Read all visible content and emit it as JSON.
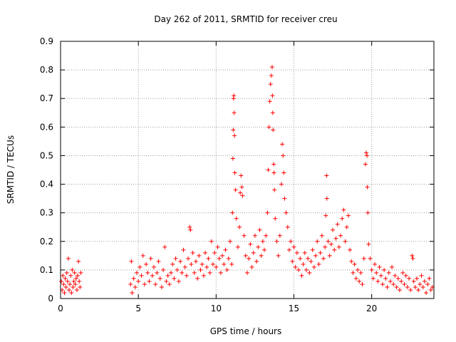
{
  "chart_data": {
    "type": "scatter",
    "title": "Day 262 of 2011, SRMTID for receiver creu",
    "xlabel": "GPS time / hours",
    "ylabel": "SRMTID / TECUs",
    "xlim": [
      0,
      24
    ],
    "ylim": [
      0,
      0.9
    ],
    "xticks": [
      0,
      5,
      10,
      15,
      20
    ],
    "xtick_labels": [
      "0",
      "5",
      "10",
      "15",
      "20"
    ],
    "yticks": [
      0,
      0.1,
      0.2,
      0.3,
      0.4,
      0.5,
      0.6,
      0.7,
      0.8,
      0.9
    ],
    "ytick_labels": [
      "0",
      "0.1",
      "0.2",
      "0.3",
      "0.4",
      "0.5",
      "0.6",
      "0.7",
      "0.8",
      "0.9"
    ],
    "grid": true,
    "marker": "+",
    "color": "#ff0000",
    "series": [
      {
        "name": "SRMTID",
        "points": [
          [
            0.05,
            0.06
          ],
          [
            0.1,
            0.03
          ],
          [
            0.15,
            0.08
          ],
          [
            0.2,
            0.05
          ],
          [
            0.25,
            0.02
          ],
          [
            0.3,
            0.07
          ],
          [
            0.35,
            0.04
          ],
          [
            0.4,
            0.09
          ],
          [
            0.45,
            0.06
          ],
          [
            0.5,
            0.14
          ],
          [
            0.55,
            0.03
          ],
          [
            0.6,
            0.05
          ],
          [
            0.65,
            0.08
          ],
          [
            0.7,
            0.02
          ],
          [
            0.75,
            0.1
          ],
          [
            0.8,
            0.04
          ],
          [
            0.85,
            0.06
          ],
          [
            0.9,
            0.09
          ],
          [
            0.95,
            0.05
          ],
          [
            1.0,
            0.07
          ],
          [
            1.05,
            0.03
          ],
          [
            1.1,
            0.08
          ],
          [
            1.15,
            0.13
          ],
          [
            1.2,
            0.06
          ],
          [
            1.25,
            0.04
          ],
          [
            1.3,
            0.09
          ],
          [
            4.5,
            0.05
          ],
          [
            4.55,
            0.13
          ],
          [
            4.6,
            0.02
          ],
          [
            4.7,
            0.07
          ],
          [
            4.8,
            0.04
          ],
          [
            4.9,
            0.09
          ],
          [
            5.0,
            0.06
          ],
          [
            5.1,
            0.11
          ],
          [
            5.2,
            0.08
          ],
          [
            5.3,
            0.15
          ],
          [
            5.4,
            0.05
          ],
          [
            5.5,
            0.12
          ],
          [
            5.6,
            0.09
          ],
          [
            5.7,
            0.06
          ],
          [
            5.8,
            0.14
          ],
          [
            5.9,
            0.08
          ],
          [
            6.0,
            0.11
          ],
          [
            6.1,
            0.05
          ],
          [
            6.2,
            0.09
          ],
          [
            6.3,
            0.13
          ],
          [
            6.4,
            0.07
          ],
          [
            6.5,
            0.04
          ],
          [
            6.6,
            0.1
          ],
          [
            6.7,
            0.18
          ],
          [
            6.8,
            0.06
          ],
          [
            6.9,
            0.08
          ],
          [
            7.0,
            0.05
          ],
          [
            7.1,
            0.09
          ],
          [
            7.2,
            0.12
          ],
          [
            7.3,
            0.07
          ],
          [
            7.4,
            0.14
          ],
          [
            7.5,
            0.1
          ],
          [
            7.6,
            0.06
          ],
          [
            7.7,
            0.13
          ],
          [
            7.8,
            0.09
          ],
          [
            7.9,
            0.17
          ],
          [
            8.0,
            0.11
          ],
          [
            8.1,
            0.08
          ],
          [
            8.2,
            0.14
          ],
          [
            8.3,
            0.25
          ],
          [
            8.35,
            0.24
          ],
          [
            8.4,
            0.12
          ],
          [
            8.5,
            0.16
          ],
          [
            8.6,
            0.09
          ],
          [
            8.7,
            0.13
          ],
          [
            8.8,
            0.07
          ],
          [
            8.9,
            0.15
          ],
          [
            9.0,
            0.1
          ],
          [
            9.1,
            0.12
          ],
          [
            9.2,
            0.08
          ],
          [
            9.3,
            0.16
          ],
          [
            9.4,
            0.11
          ],
          [
            9.5,
            0.14
          ],
          [
            9.6,
            0.09
          ],
          [
            9.7,
            0.2
          ],
          [
            9.8,
            0.12
          ],
          [
            9.9,
            0.16
          ],
          [
            10.0,
            0.11
          ],
          [
            10.1,
            0.18
          ],
          [
            10.2,
            0.14
          ],
          [
            10.3,
            0.09
          ],
          [
            10.4,
            0.15
          ],
          [
            10.5,
            0.12
          ],
          [
            10.6,
            0.17
          ],
          [
            10.7,
            0.1
          ],
          [
            10.8,
            0.14
          ],
          [
            10.9,
            0.2
          ],
          [
            11.0,
            0.12
          ],
          [
            11.05,
            0.3
          ],
          [
            11.08,
            0.49
          ],
          [
            11.1,
            0.59
          ],
          [
            11.12,
            0.7
          ],
          [
            11.14,
            0.71
          ],
          [
            11.16,
            0.65
          ],
          [
            11.18,
            0.57
          ],
          [
            11.2,
            0.44
          ],
          [
            11.25,
            0.38
          ],
          [
            11.3,
            0.28
          ],
          [
            11.4,
            0.18
          ],
          [
            11.5,
            0.25
          ],
          [
            11.55,
            0.37
          ],
          [
            11.6,
            0.43
          ],
          [
            11.65,
            0.39
          ],
          [
            11.7,
            0.36
          ],
          [
            11.8,
            0.22
          ],
          [
            11.9,
            0.15
          ],
          [
            12.0,
            0.09
          ],
          [
            12.1,
            0.14
          ],
          [
            12.2,
            0.19
          ],
          [
            12.3,
            0.11
          ],
          [
            12.4,
            0.16
          ],
          [
            12.5,
            0.22
          ],
          [
            12.6,
            0.13
          ],
          [
            12.7,
            0.18
          ],
          [
            12.8,
            0.24
          ],
          [
            12.9,
            0.15
          ],
          [
            13.0,
            0.2
          ],
          [
            13.1,
            0.17
          ],
          [
            13.2,
            0.22
          ],
          [
            13.3,
            0.3
          ],
          [
            13.35,
            0.45
          ],
          [
            13.4,
            0.6
          ],
          [
            13.45,
            0.69
          ],
          [
            13.5,
            0.75
          ],
          [
            13.55,
            0.78
          ],
          [
            13.6,
            0.81
          ],
          [
            13.62,
            0.71
          ],
          [
            13.64,
            0.65
          ],
          [
            13.66,
            0.59
          ],
          [
            13.7,
            0.47
          ],
          [
            13.72,
            0.44
          ],
          [
            13.75,
            0.38
          ],
          [
            13.8,
            0.28
          ],
          [
            13.9,
            0.2
          ],
          [
            14.0,
            0.15
          ],
          [
            14.1,
            0.22
          ],
          [
            14.2,
            0.4
          ],
          [
            14.25,
            0.54
          ],
          [
            14.3,
            0.5
          ],
          [
            14.35,
            0.44
          ],
          [
            14.4,
            0.35
          ],
          [
            14.5,
            0.3
          ],
          [
            14.6,
            0.25
          ],
          [
            14.7,
            0.17
          ],
          [
            14.8,
            0.2
          ],
          [
            14.9,
            0.13
          ],
          [
            15.0,
            0.18
          ],
          [
            15.1,
            0.11
          ],
          [
            15.2,
            0.16
          ],
          [
            15.3,
            0.1
          ],
          [
            15.4,
            0.14
          ],
          [
            15.5,
            0.08
          ],
          [
            15.6,
            0.12
          ],
          [
            15.7,
            0.16
          ],
          [
            15.8,
            0.1
          ],
          [
            15.9,
            0.14
          ],
          [
            16.0,
            0.09
          ],
          [
            16.1,
            0.13
          ],
          [
            16.2,
            0.17
          ],
          [
            16.3,
            0.11
          ],
          [
            16.4,
            0.15
          ],
          [
            16.5,
            0.2
          ],
          [
            16.6,
            0.12
          ],
          [
            16.7,
            0.16
          ],
          [
            16.8,
            0.22
          ],
          [
            16.9,
            0.14
          ],
          [
            17.0,
            0.18
          ],
          [
            17.05,
            0.29
          ],
          [
            17.1,
            0.43
          ],
          [
            17.12,
            0.35
          ],
          [
            17.2,
            0.2
          ],
          [
            17.3,
            0.15
          ],
          [
            17.4,
            0.19
          ],
          [
            17.5,
            0.24
          ],
          [
            17.6,
            0.17
          ],
          [
            17.7,
            0.21
          ],
          [
            17.8,
            0.26
          ],
          [
            17.9,
            0.18
          ],
          [
            18.0,
            0.22
          ],
          [
            18.1,
            0.28
          ],
          [
            18.2,
            0.31
          ],
          [
            18.3,
            0.2
          ],
          [
            18.4,
            0.25
          ],
          [
            18.5,
            0.29
          ],
          [
            18.6,
            0.17
          ],
          [
            18.7,
            0.13
          ],
          [
            18.8,
            0.09
          ],
          [
            18.9,
            0.12
          ],
          [
            19.0,
            0.07
          ],
          [
            19.1,
            0.1
          ],
          [
            19.2,
            0.06
          ],
          [
            19.3,
            0.09
          ],
          [
            19.4,
            0.05
          ],
          [
            19.5,
            0.14
          ],
          [
            19.6,
            0.47
          ],
          [
            19.65,
            0.51
          ],
          [
            19.7,
            0.5
          ],
          [
            19.72,
            0.39
          ],
          [
            19.75,
            0.3
          ],
          [
            19.8,
            0.19
          ],
          [
            19.9,
            0.14
          ],
          [
            20.0,
            0.1
          ],
          [
            20.1,
            0.07
          ],
          [
            20.2,
            0.12
          ],
          [
            20.3,
            0.09
          ],
          [
            20.4,
            0.06
          ],
          [
            20.5,
            0.11
          ],
          [
            20.6,
            0.08
          ],
          [
            20.7,
            0.05
          ],
          [
            20.8,
            0.1
          ],
          [
            20.9,
            0.07
          ],
          [
            21.0,
            0.04
          ],
          [
            21.1,
            0.09
          ],
          [
            21.2,
            0.06
          ],
          [
            21.3,
            0.11
          ],
          [
            21.4,
            0.05
          ],
          [
            21.5,
            0.08
          ],
          [
            21.6,
            0.04
          ],
          [
            21.7,
            0.07
          ],
          [
            21.8,
            0.03
          ],
          [
            21.9,
            0.06
          ],
          [
            22.0,
            0.09
          ],
          [
            22.1,
            0.05
          ],
          [
            22.2,
            0.08
          ],
          [
            22.3,
            0.04
          ],
          [
            22.4,
            0.07
          ],
          [
            22.5,
            0.03
          ],
          [
            22.6,
            0.15
          ],
          [
            22.65,
            0.14
          ],
          [
            22.7,
            0.06
          ],
          [
            22.8,
            0.04
          ],
          [
            22.9,
            0.07
          ],
          [
            23.0,
            0.03
          ],
          [
            23.1,
            0.05
          ],
          [
            23.2,
            0.08
          ],
          [
            23.3,
            0.04
          ],
          [
            23.4,
            0.06
          ],
          [
            23.5,
            0.02
          ],
          [
            23.6,
            0.05
          ],
          [
            23.7,
            0.07
          ],
          [
            23.8,
            0.03
          ],
          [
            23.9,
            0.04
          ]
        ]
      }
    ]
  }
}
